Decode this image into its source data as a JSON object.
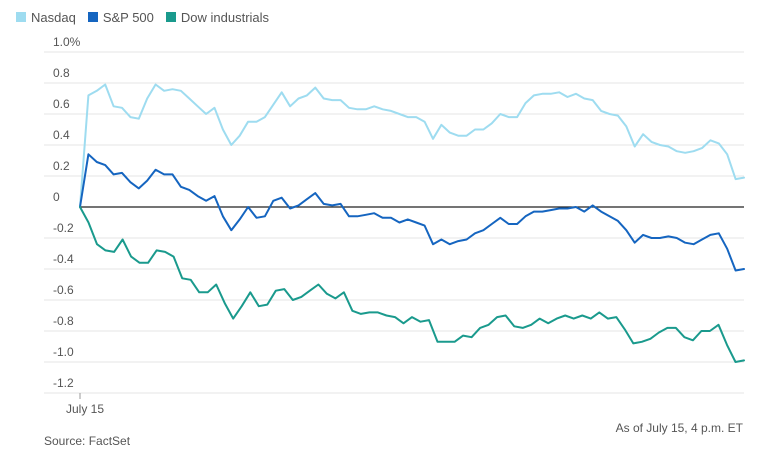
{
  "chart_data": {
    "type": "line",
    "title": "",
    "xlabel": "",
    "ylabel": "",
    "ylim": [
      -1.2,
      1.0
    ],
    "yticks": [
      1.0,
      0.8,
      0.6,
      0.4,
      0.2,
      0,
      -0.2,
      -0.4,
      -0.6,
      -0.8,
      -1.0,
      -1.2
    ],
    "ytick_labels": [
      "1.0%",
      "0.8",
      "0.6",
      "0.4",
      "0.2",
      "0",
      "-0.2",
      "-0.4",
      "-0.6",
      "-0.8",
      "-1.0",
      "-1.2"
    ],
    "x_tick_label": "July 15",
    "grid": "horizontal",
    "legend_position": "top-left",
    "series": [
      {
        "name": "Nasdaq",
        "color": "#9edcf0",
        "values": [
          0,
          0.72,
          0.75,
          0.79,
          0.65,
          0.64,
          0.58,
          0.57,
          0.7,
          0.79,
          0.75,
          0.76,
          0.75,
          0.7,
          0.65,
          0.6,
          0.64,
          0.5,
          0.4,
          0.46,
          0.55,
          0.55,
          0.58,
          0.66,
          0.74,
          0.65,
          0.7,
          0.72,
          0.77,
          0.7,
          0.69,
          0.69,
          0.64,
          0.63,
          0.63,
          0.65,
          0.63,
          0.62,
          0.6,
          0.58,
          0.58,
          0.55,
          0.44,
          0.53,
          0.48,
          0.46,
          0.46,
          0.5,
          0.5,
          0.54,
          0.6,
          0.58,
          0.58,
          0.67,
          0.72,
          0.73,
          0.73,
          0.74,
          0.71,
          0.73,
          0.7,
          0.69,
          0.62,
          0.6,
          0.59,
          0.52,
          0.39,
          0.47,
          0.42,
          0.4,
          0.39,
          0.36,
          0.35,
          0.36,
          0.38,
          0.43,
          0.41,
          0.34,
          0.18,
          0.19
        ]
      },
      {
        "name": "S&P 500",
        "color": "#1565c0",
        "values": [
          0,
          0.34,
          0.29,
          0.27,
          0.21,
          0.22,
          0.16,
          0.12,
          0.17,
          0.24,
          0.21,
          0.21,
          0.13,
          0.11,
          0.07,
          0.04,
          0.07,
          -0.06,
          -0.15,
          -0.08,
          0,
          -0.07,
          -0.06,
          0.04,
          0.06,
          -0.01,
          0.01,
          0.05,
          0.09,
          0.02,
          0.01,
          0.02,
          -0.06,
          -0.06,
          -0.05,
          -0.04,
          -0.07,
          -0.07,
          -0.1,
          -0.08,
          -0.1,
          -0.12,
          -0.24,
          -0.21,
          -0.24,
          -0.22,
          -0.21,
          -0.17,
          -0.15,
          -0.11,
          -0.07,
          -0.11,
          -0.11,
          -0.06,
          -0.03,
          -0.03,
          -0.02,
          -0.01,
          -0.01,
          0,
          -0.03,
          0.01,
          -0.03,
          -0.06,
          -0.09,
          -0.15,
          -0.23,
          -0.18,
          -0.2,
          -0.2,
          -0.19,
          -0.2,
          -0.23,
          -0.24,
          -0.21,
          -0.18,
          -0.17,
          -0.27,
          -0.41,
          -0.4
        ]
      },
      {
        "name": "Dow industrials",
        "color": "#1a9a8d",
        "values": [
          0,
          -0.1,
          -0.24,
          -0.28,
          -0.29,
          -0.21,
          -0.32,
          -0.36,
          -0.36,
          -0.28,
          -0.29,
          -0.32,
          -0.46,
          -0.47,
          -0.55,
          -0.55,
          -0.5,
          -0.62,
          -0.72,
          -0.64,
          -0.55,
          -0.64,
          -0.63,
          -0.54,
          -0.53,
          -0.6,
          -0.58,
          -0.54,
          -0.5,
          -0.56,
          -0.59,
          -0.55,
          -0.67,
          -0.69,
          -0.68,
          -0.68,
          -0.7,
          -0.71,
          -0.75,
          -0.71,
          -0.74,
          -0.73,
          -0.87,
          -0.87,
          -0.87,
          -0.83,
          -0.84,
          -0.78,
          -0.76,
          -0.71,
          -0.7,
          -0.77,
          -0.78,
          -0.76,
          -0.72,
          -0.75,
          -0.72,
          -0.7,
          -0.72,
          -0.7,
          -0.72,
          -0.68,
          -0.72,
          -0.71,
          -0.79,
          -0.88,
          -0.87,
          -0.85,
          -0.81,
          -0.78,
          -0.78,
          -0.84,
          -0.86,
          -0.8,
          -0.8,
          -0.76,
          -0.89,
          -1.0,
          -0.99
        ]
      }
    ]
  },
  "annotation": "As of July 15, 4 p.m. ET",
  "source": "Source: FactSet"
}
